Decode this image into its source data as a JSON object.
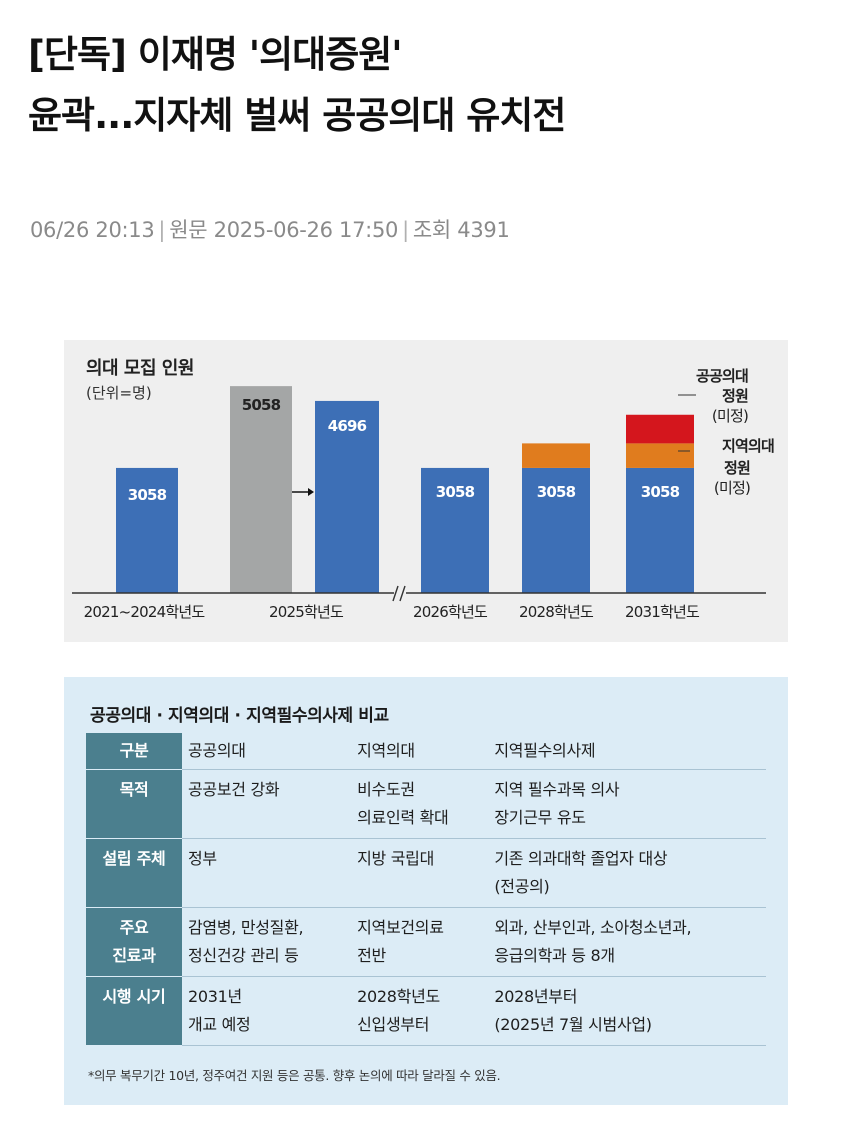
{
  "article": {
    "title_line1": "[단독] 이재명 '의대증원'",
    "title_line2": "윤곽...지자체 벌써 공공의대 유치전",
    "posted": "06/26 20:13",
    "original_label": "원문",
    "original_time": "2025-06-26 17:50",
    "views_label": "조회",
    "views": "4391"
  },
  "colors": {
    "base": "#3d6fb6",
    "prev2025": "#a4a6a6",
    "regional": "#e07c1e",
    "public": "#d4161d",
    "table_header": "#4b7f8e",
    "table_bg": "#dcecf6"
  },
  "chart_data": {
    "type": "bar",
    "title": "의대 모집 인원",
    "unit": "(단위=명)",
    "categories": [
      "2021~2024학년도",
      "2025학년도",
      "2026학년도",
      "2028학년도",
      "2031학년도"
    ],
    "bars": [
      {
        "category": "2021~2024학년도",
        "base": 3058,
        "base_label": "3058",
        "regional": 0,
        "public": 0
      },
      {
        "category": "2025학년도",
        "previous": 5058,
        "previous_label": "5058",
        "base": 4696,
        "base_label": "4696",
        "regional": 0,
        "public": 0
      },
      {
        "category": "2026학년도",
        "base": 3058,
        "base_label": "3058",
        "regional": 0,
        "public": 0
      },
      {
        "category": "2028학년도",
        "base": 3058,
        "base_label": "3058",
        "regional": 600,
        "public": 0
      },
      {
        "category": "2031학년도",
        "base": 3058,
        "base_label": "3058",
        "regional": 600,
        "public": 700
      }
    ],
    "annotations": {
      "public": [
        "공공의대",
        "정원",
        "(미정)"
      ],
      "regional": [
        "지역의대",
        "정원",
        "(미정)"
      ]
    },
    "ylim": [
      0,
      5500
    ],
    "axis_break_after": "2025학년도"
  },
  "table": {
    "title": "공공의대 · 지역의대 · 지역필수의사제 비교",
    "header": [
      "구분",
      "공공의대",
      "지역의대",
      "지역필수의사제"
    ],
    "rows": [
      {
        "label": [
          "목적"
        ],
        "c1": [
          "공공보건 강화"
        ],
        "c2": [
          "비수도권",
          "의료인력 확대"
        ],
        "c3": [
          "지역 필수과목 의사",
          "장기근무 유도"
        ]
      },
      {
        "label": [
          "설립 주체"
        ],
        "c1": [
          "정부"
        ],
        "c2": [
          "지방 국립대"
        ],
        "c3": [
          "기존 의과대학 졸업자 대상",
          "(전공의)"
        ]
      },
      {
        "label": [
          "주요",
          "진료과"
        ],
        "c1": [
          "감염병, 만성질환,",
          "정신건강 관리 등"
        ],
        "c2": [
          "지역보건의료",
          "전반"
        ],
        "c3": [
          "외과, 산부인과, 소아청소년과,",
          "응급의학과 등 8개"
        ]
      },
      {
        "label": [
          "시행 시기"
        ],
        "c1": [
          "2031년",
          "개교 예정"
        ],
        "c2": [
          "2028학년도",
          "신입생부터"
        ],
        "c3": [
          "2028년부터",
          "(2025년 7월 시범사업)"
        ]
      }
    ],
    "footnote": "*의무 복무기간 10년, 정주여건 지원 등은 공통. 향후 논의에 따라 달라질 수 있음."
  }
}
